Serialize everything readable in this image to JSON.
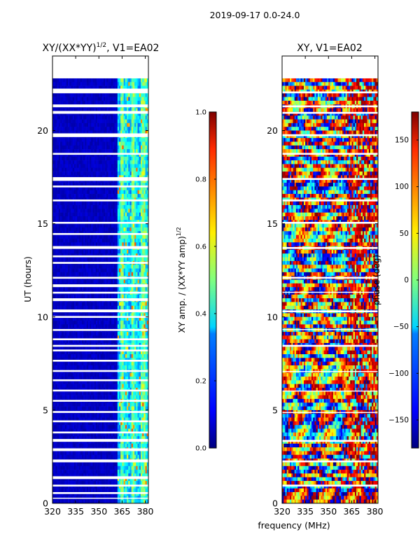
{
  "suptitle": "2019-09-17 0.0-24.0",
  "colors": {
    "jet": [
      "#00007f",
      "#0000ff",
      "#007fff",
      "#00ffff",
      "#7fff7f",
      "#ffff00",
      "#ff7f00",
      "#ff0000",
      "#7f0000"
    ],
    "gap": "#ffffff",
    "frame": "#000000"
  },
  "chart_data": [
    {
      "type": "heatmap",
      "title_main": "XY/(XX*YY)",
      "title_exp": "1/2",
      "title_suffix": ", V1=EA02",
      "ylabel": "UT (hours)",
      "xlabel": "",
      "xlim": [
        320,
        382
      ],
      "ylim": [
        0,
        24
      ],
      "xticks": [
        320,
        335,
        350,
        365,
        380
      ],
      "yticks": [
        0,
        5,
        10,
        15,
        20
      ],
      "value_kind": "amplitude",
      "cells": "XY amplitude normalised by sqrt(XX*YY amp), per frequency and UT time; mostly ~0.05 below 362 MHz, ~0.2-0.7 in 362-382 MHz band",
      "data_gaps_hours": [
        [
          22.8,
          24.0
        ],
        [
          22.0,
          22.25
        ],
        [
          21.25,
          21.4
        ],
        [
          20.9,
          21.05
        ],
        [
          19.65,
          19.85
        ],
        [
          18.7,
          18.8
        ],
        [
          17.3,
          17.5
        ],
        [
          16.95,
          17.05
        ],
        [
          16.2,
          16.3
        ],
        [
          15.0,
          15.1
        ],
        [
          14.4,
          14.5
        ],
        [
          13.65,
          13.8
        ],
        [
          13.2,
          13.3
        ],
        [
          12.85,
          12.95
        ],
        [
          12.05,
          12.15
        ],
        [
          11.6,
          11.75
        ],
        [
          11.25,
          11.35
        ],
        [
          10.85,
          11.0
        ],
        [
          10.25,
          10.4
        ],
        [
          9.95,
          10.05
        ],
        [
          9.25,
          9.35
        ],
        [
          8.75,
          8.85
        ],
        [
          8.4,
          8.5
        ],
        [
          8.15,
          8.25
        ],
        [
          7.6,
          7.7
        ],
        [
          7.05,
          7.15
        ],
        [
          6.55,
          6.65
        ],
        [
          6.0,
          6.1
        ],
        [
          5.45,
          5.55
        ],
        [
          4.85,
          4.95
        ],
        [
          4.35,
          4.45
        ],
        [
          3.75,
          3.85
        ],
        [
          3.3,
          3.45
        ],
        [
          2.8,
          2.95
        ],
        [
          2.2,
          2.35
        ],
        [
          1.3,
          1.45
        ],
        [
          0.9,
          1.0
        ],
        [
          0.5,
          0.6
        ],
        [
          0.25,
          0.3
        ]
      ]
    },
    {
      "type": "heatmap",
      "title_main": "XY, V1=EA02",
      "ylabel": "",
      "xlabel": "frequency (MHz)",
      "xlim": [
        320,
        382
      ],
      "ylim": [
        0,
        24
      ],
      "xticks": [
        320,
        335,
        350,
        365,
        380
      ],
      "yticks": [
        0,
        5,
        10,
        15,
        20
      ],
      "value_kind": "phase",
      "cells": "XY phase in degrees per frequency and UT time; noisy across -180..180",
      "data_gaps_hours": [
        [
          22.8,
          24.0
        ],
        [
          22.0,
          22.1
        ],
        [
          21.25,
          21.35
        ],
        [
          20.9,
          21.0
        ],
        [
          19.7,
          19.8
        ],
        [
          18.7,
          18.8
        ],
        [
          17.35,
          17.45
        ],
        [
          16.2,
          16.3
        ],
        [
          15.0,
          15.1
        ],
        [
          13.65,
          13.75
        ],
        [
          12.05,
          12.15
        ],
        [
          11.3,
          11.35
        ],
        [
          10.25,
          10.35
        ],
        [
          9.3,
          9.35
        ],
        [
          8.4,
          8.5
        ],
        [
          7.05,
          7.1
        ],
        [
          6.0,
          6.05
        ],
        [
          4.85,
          4.9
        ],
        [
          3.3,
          3.4
        ],
        [
          2.2,
          2.3
        ],
        [
          0.9,
          1.0
        ]
      ]
    },
    {
      "type": "colorbar",
      "label_main": "XY amp. / (XX*YY amp)",
      "label_exp": "1/2",
      "range": [
        0,
        1
      ],
      "ticks": [
        "0.0",
        "0.2",
        "0.4",
        "0.6",
        "0.8",
        "1.0"
      ],
      "tick_values": [
        0,
        0.2,
        0.4,
        0.6,
        0.8,
        1.0
      ]
    },
    {
      "type": "colorbar",
      "label_main": "phase (deg)",
      "range": [
        -180,
        180
      ],
      "ticks": [
        "−150",
        "−100",
        "−50",
        "0",
        "50",
        "100",
        "150"
      ],
      "tick_values": [
        -150,
        -100,
        -50,
        0,
        50,
        100,
        150
      ]
    }
  ]
}
